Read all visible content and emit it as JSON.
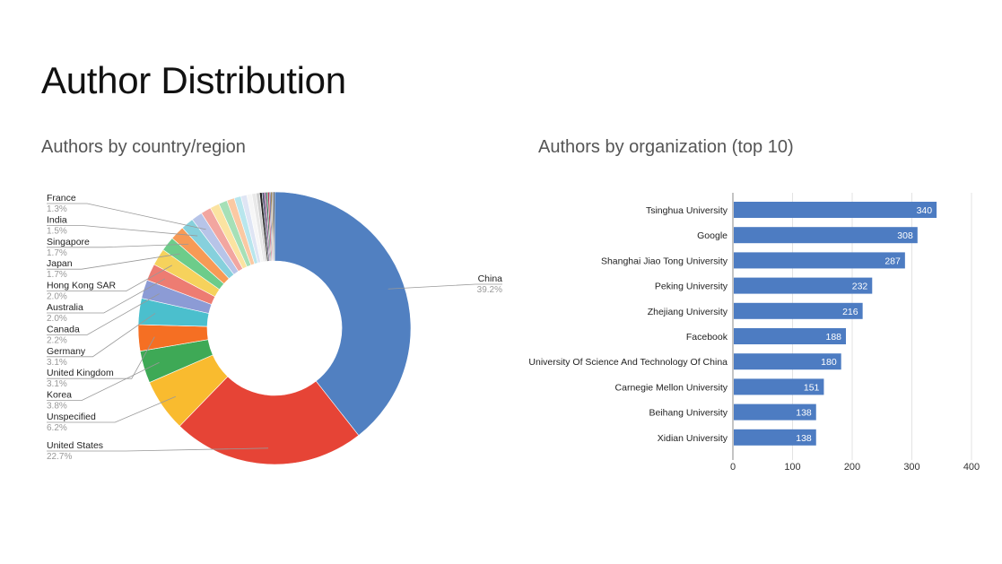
{
  "slide": {
    "title": "Author Distribution"
  },
  "chart_data": [
    {
      "type": "pie",
      "variant": "donut",
      "title": "Authors by country/region",
      "slices": [
        {
          "label": "China",
          "value": 39.2,
          "pct": "39.2%",
          "color": "#5180c1",
          "labeled": true
        },
        {
          "label": "United States",
          "value": 22.7,
          "pct": "22.7%",
          "color": "#e64436",
          "labeled": true
        },
        {
          "label": "Unspecified",
          "value": 6.2,
          "pct": "6.2%",
          "color": "#f9bb2f",
          "labeled": true
        },
        {
          "label": "Korea",
          "value": 3.8,
          "pct": "3.8%",
          "color": "#3ea956",
          "labeled": true
        },
        {
          "label": "United Kingdom",
          "value": 3.1,
          "pct": "3.1%",
          "color": "#f56f23",
          "labeled": true
        },
        {
          "label": "Germany",
          "value": 3.1,
          "pct": "3.1%",
          "color": "#4bbfcd",
          "labeled": true
        },
        {
          "label": "Canada",
          "value": 2.2,
          "pct": "2.2%",
          "color": "#8c9bd5",
          "labeled": true
        },
        {
          "label": "Australia",
          "value": 2.0,
          "pct": "2.0%",
          "color": "#ed7c72",
          "labeled": true
        },
        {
          "label": "Hong Kong SAR",
          "value": 2.0,
          "pct": "2.0%",
          "color": "#f6d25c",
          "labeled": true
        },
        {
          "label": "Japan",
          "value": 1.7,
          "pct": "1.7%",
          "color": "#6dcc8a",
          "labeled": true
        },
        {
          "label": "Singapore",
          "value": 1.7,
          "pct": "1.7%",
          "color": "#f79a56",
          "labeled": true
        },
        {
          "label": "India",
          "value": 1.5,
          "pct": "1.5%",
          "color": "#86d0dc",
          "labeled": true
        },
        {
          "label": "France",
          "value": 1.3,
          "pct": "1.3%",
          "color": "#b7c4e8",
          "labeled": true
        },
        {
          "value": 1.2,
          "color": "#f2a6a0",
          "labeled": false
        },
        {
          "value": 1.1,
          "color": "#fbe3a1",
          "labeled": false
        },
        {
          "value": 1.0,
          "color": "#a6e0b7",
          "labeled": false
        },
        {
          "value": 0.9,
          "color": "#fbc9a3",
          "labeled": false
        },
        {
          "value": 0.8,
          "color": "#b8e6ed",
          "labeled": false
        },
        {
          "value": 0.7,
          "color": "#dfe5f4",
          "labeled": false
        },
        {
          "value": 0.6,
          "color": "#f6f6f6",
          "labeled": false
        },
        {
          "value": 0.5,
          "color": "#e9e9e9",
          "labeled": false
        },
        {
          "value": 0.4,
          "color": "#cfcfcf",
          "labeled": false
        },
        {
          "value": 0.3,
          "color": "#222222",
          "labeled": false
        },
        {
          "value": 0.25,
          "color": "#444466",
          "labeled": false
        },
        {
          "value": 0.2,
          "color": "#7a3a7a",
          "labeled": false
        },
        {
          "value": 0.2,
          "color": "#2c6c4c",
          "labeled": false
        },
        {
          "value": 0.2,
          "color": "#b03050",
          "labeled": false
        },
        {
          "value": 0.15,
          "color": "#303070",
          "labeled": false
        },
        {
          "value": 0.15,
          "color": "#806020",
          "labeled": false
        },
        {
          "value": 0.15,
          "color": "#505050",
          "labeled": false
        },
        {
          "value": 0.15,
          "color": "#1a1a1a",
          "labeled": false
        }
      ]
    },
    {
      "type": "bar",
      "orientation": "horizontal",
      "title": "Authors by organization (top 10)",
      "bar_color": "#4d7cc2",
      "categories": [
        "Tsinghua University",
        "Google",
        "Shanghai Jiao Tong University",
        "Peking University",
        "Zhejiang University",
        "Facebook",
        "University Of Science And Technology Of China",
        "Carnegie Mellon University",
        "Beihang University",
        "Xidian University"
      ],
      "values": [
        340,
        308,
        287,
        232,
        216,
        188,
        180,
        151,
        138,
        138
      ],
      "xlim": [
        0,
        400
      ],
      "xticks": [
        0,
        100,
        200,
        300,
        400
      ],
      "grid": true
    }
  ]
}
